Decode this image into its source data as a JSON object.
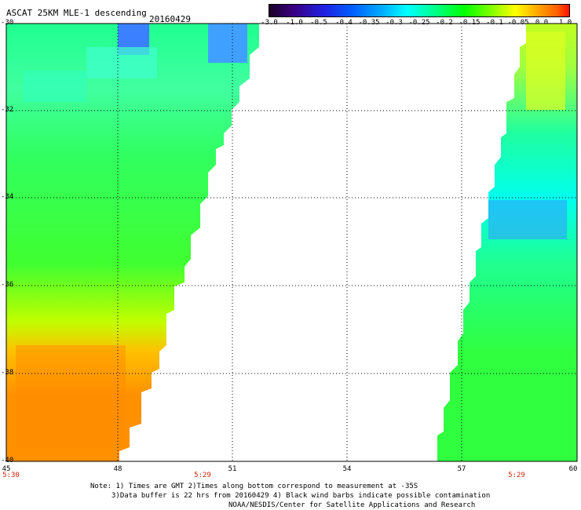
{
  "header": {
    "title": "ASCAT 25KM MLE-1 descending",
    "date": "20160429"
  },
  "colorbar": {
    "ticks": [
      "-3.0",
      "-1.0",
      "-0.5",
      "-0.4",
      "-0.35",
      "-0.3",
      "-0.25",
      "-0.2",
      "-0.15",
      "-0.1",
      "-0.05",
      "0.0",
      "1.0"
    ],
    "colors": [
      "#1a0026",
      "#3a0080",
      "#0000e0",
      "#0060ff",
      "#00b0ff",
      "#00ffff",
      "#00ff80",
      "#00ff00",
      "#80ff00",
      "#ffff00",
      "#ffa000",
      "#ff6000",
      "#ff1000"
    ]
  },
  "axes": {
    "lat_labels": [
      "-30",
      "-32",
      "-34",
      "-36",
      "-38",
      "-40"
    ],
    "lon_labels": [
      "45",
      "48",
      "51",
      "54",
      "57",
      "60"
    ],
    "time_labels": [
      "5:30",
      "5:29",
      "5:29"
    ]
  },
  "notes": [
    "Note: 1) Times are GMT 2)Times along bottom correspond to measurement at -35S",
    "3)Data buffer is 22 hrs from 20160429 4) Black wind barbs indicate possible contamination",
    "NOAA/NESDIS/Center for Satellite Applications and Research"
  ],
  "map_data": {
    "lat_range": [
      -40,
      -30
    ],
    "lon_range": [
      45,
      60
    ],
    "grid": "dotted every 3 deg lon / 2 deg lat"
  }
}
